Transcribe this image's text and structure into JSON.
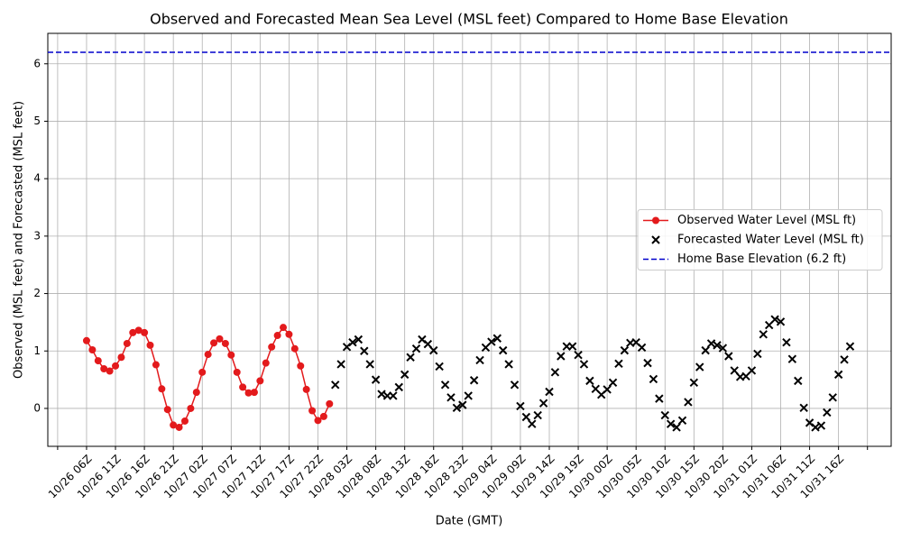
{
  "chart_data": {
    "type": "line",
    "title": "Observed and Forecasted Mean Sea Level (MSL feet) Compared to Home Base Elevation",
    "x_label": "Date (GMT)",
    "y_label": "Observed (MSL feet) and Forecasted (MSL feet)",
    "xlim": [
      -0.7,
      145.1
    ],
    "ylim": [
      -0.66,
      6.53
    ],
    "grid": true,
    "legend": "center right",
    "xticks": [
      {
        "value": 1,
        "label": null
      },
      {
        "value": 6,
        "label": "10/26 06Z"
      },
      {
        "value": 11,
        "label": "10/26 11Z"
      },
      {
        "value": 16,
        "label": "10/26 16Z"
      },
      {
        "value": 21,
        "label": "10/26 21Z"
      },
      {
        "value": 26,
        "label": "10/27 02Z"
      },
      {
        "value": 31,
        "label": "10/27 07Z"
      },
      {
        "value": 36,
        "label": "10/27 12Z"
      },
      {
        "value": 41,
        "label": "10/27 17Z"
      },
      {
        "value": 46,
        "label": "10/27 22Z"
      },
      {
        "value": 51,
        "label": "10/28 03Z"
      },
      {
        "value": 56,
        "label": "10/28 08Z"
      },
      {
        "value": 61,
        "label": "10/28 13Z"
      },
      {
        "value": 66,
        "label": "10/28 18Z"
      },
      {
        "value": 71,
        "label": "10/28 23Z"
      },
      {
        "value": 76,
        "label": "10/29 04Z"
      },
      {
        "value": 81,
        "label": "10/29 09Z"
      },
      {
        "value": 86,
        "label": "10/29 14Z"
      },
      {
        "value": 91,
        "label": "10/29 19Z"
      },
      {
        "value": 96,
        "label": "10/30 00Z"
      },
      {
        "value": 101,
        "label": "10/30 05Z"
      },
      {
        "value": 106,
        "label": "10/30 10Z"
      },
      {
        "value": 111,
        "label": "10/30 15Z"
      },
      {
        "value": 116,
        "label": "10/30 20Z"
      },
      {
        "value": 121,
        "label": "10/31 01Z"
      },
      {
        "value": 126,
        "label": "10/31 06Z"
      },
      {
        "value": 131,
        "label": "10/31 11Z"
      },
      {
        "value": 136,
        "label": "10/31 16Z"
      },
      {
        "value": 141,
        "label": null
      }
    ],
    "yticks": [
      0,
      1,
      2,
      3,
      4,
      5,
      6
    ],
    "series": [
      {
        "name": "Observed Water Level (MSL ft)",
        "color": "#e31a1c",
        "style": "line-marker",
        "x": [
          6,
          7,
          8,
          9,
          10,
          11,
          12,
          13,
          14,
          15,
          16,
          17,
          18,
          19,
          20,
          21,
          22,
          23,
          24,
          25,
          26,
          27,
          28,
          29,
          30,
          31,
          32,
          33,
          34,
          35,
          36,
          37,
          38,
          39,
          40,
          41,
          42,
          43,
          44,
          45,
          46,
          47,
          48
        ],
        "values": [
          1.18,
          1.02,
          0.83,
          0.69,
          0.65,
          0.74,
          0.89,
          1.13,
          1.32,
          1.36,
          1.32,
          1.1,
          0.76,
          0.34,
          -0.02,
          -0.29,
          -0.33,
          -0.22,
          0.0,
          0.28,
          0.63,
          0.94,
          1.14,
          1.21,
          1.13,
          0.93,
          0.63,
          0.37,
          0.27,
          0.28,
          0.48,
          0.79,
          1.07,
          1.27,
          1.41,
          1.29,
          1.04,
          0.74,
          0.33,
          -0.04,
          -0.21,
          -0.14,
          0.08
        ]
      },
      {
        "name": "Forecasted Water Level (MSL ft)",
        "color": "#000000",
        "style": "x-marker",
        "x": [
          49,
          50,
          51,
          52,
          53,
          54,
          55,
          56,
          57,
          58,
          59,
          60,
          61,
          62,
          63,
          64,
          65,
          66,
          67,
          68,
          69,
          70,
          71,
          72,
          73,
          74,
          75,
          76,
          77,
          78,
          79,
          80,
          81,
          82,
          83,
          84,
          85,
          86,
          87,
          88,
          89,
          90,
          91,
          92,
          93,
          94,
          95,
          96,
          97,
          98,
          99,
          100,
          101,
          102,
          103,
          104,
          105,
          106,
          107,
          108,
          109,
          110,
          111,
          112,
          113,
          114,
          115,
          116,
          117,
          118,
          119,
          120,
          121,
          122,
          123,
          124,
          125,
          126,
          127,
          128,
          129,
          130,
          131,
          132,
          133,
          134,
          135,
          136,
          137,
          138
        ],
        "values": [
          0.41,
          0.77,
          1.07,
          1.15,
          1.2,
          1.0,
          0.77,
          0.5,
          0.25,
          0.22,
          0.22,
          0.37,
          0.59,
          0.89,
          1.04,
          1.2,
          1.12,
          1.01,
          0.73,
          0.41,
          0.19,
          0.01,
          0.06,
          0.22,
          0.49,
          0.84,
          1.06,
          1.16,
          1.22,
          1.01,
          0.77,
          0.41,
          0.04,
          -0.15,
          -0.27,
          -0.12,
          0.09,
          0.29,
          0.63,
          0.91,
          1.08,
          1.08,
          0.93,
          0.77,
          0.48,
          0.34,
          0.24,
          0.33,
          0.45,
          0.78,
          1.01,
          1.14,
          1.15,
          1.06,
          0.79,
          0.51,
          0.17,
          -0.12,
          -0.27,
          -0.33,
          -0.21,
          0.11,
          0.45,
          0.72,
          1.01,
          1.13,
          1.1,
          1.05,
          0.91,
          0.66,
          0.55,
          0.56,
          0.66,
          0.95,
          1.29,
          1.45,
          1.55,
          1.51,
          1.15,
          0.86,
          0.48,
          0.01,
          -0.25,
          -0.33,
          -0.3,
          -0.07,
          0.19,
          0.59,
          0.85,
          1.08
        ]
      },
      {
        "name": "Home Base Elevation (6.2 ft)",
        "color": "#0000cc",
        "style": "hline",
        "value": 6.2
      }
    ]
  }
}
